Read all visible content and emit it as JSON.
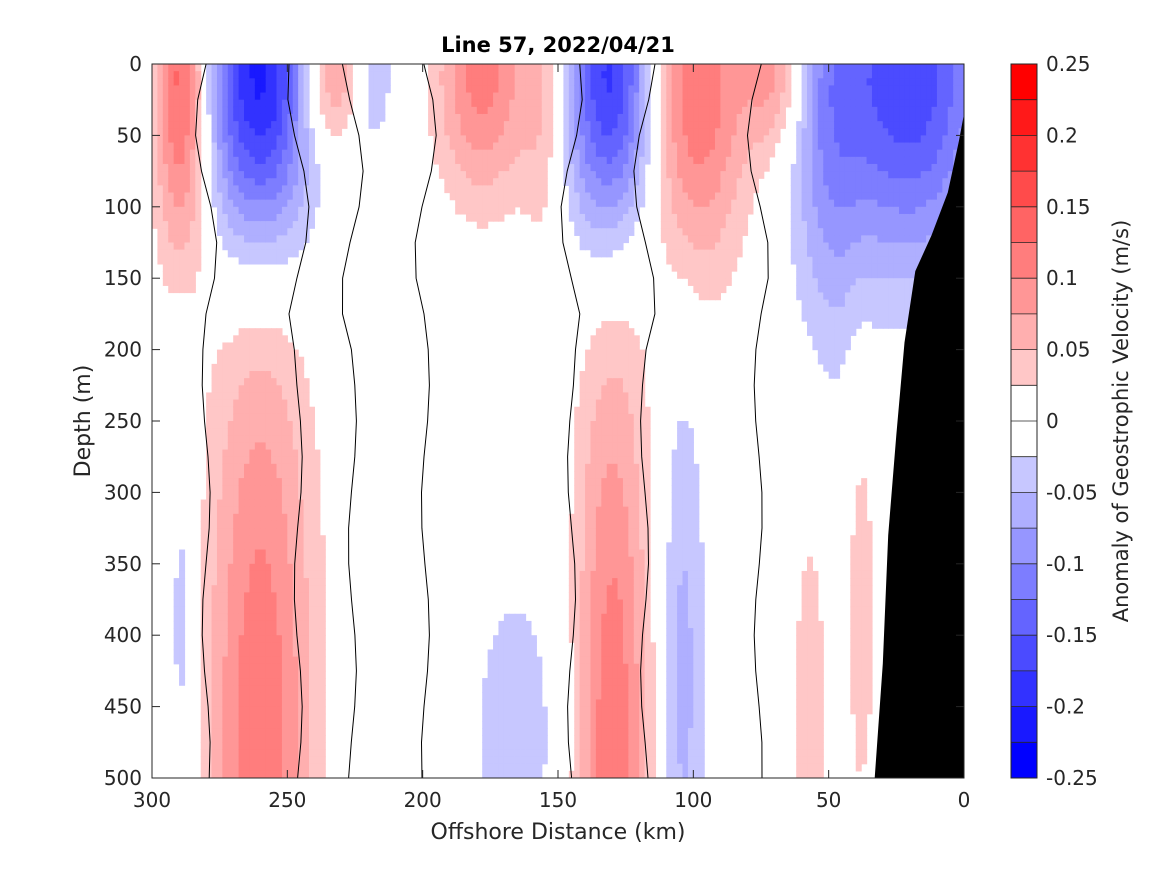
{
  "chart_data": {
    "type": "contourf",
    "title": "Line 57, 2022/04/21",
    "xlabel": "Offshore Distance (km)",
    "ylabel": "Depth (m)",
    "xlim": [
      300,
      0
    ],
    "ylim": [
      500,
      0
    ],
    "x_reversed": true,
    "y_reversed": true,
    "x_ticks": [
      300,
      250,
      200,
      150,
      100,
      50,
      0
    ],
    "y_ticks": [
      0,
      50,
      100,
      150,
      200,
      250,
      300,
      350,
      400,
      450,
      500
    ],
    "colorbar": {
      "label": "Anomaly of Geostrophic Velocity (m/s)",
      "range": [
        -0.25,
        0.25
      ],
      "step": 0.025,
      "ticks": [
        0.25,
        0.2,
        0.15,
        0.1,
        0.05,
        0,
        -0.05,
        -0.1,
        -0.15,
        -0.2,
        -0.25
      ]
    },
    "zero_contour_positions_km": [
      280,
      246,
      226,
      199,
      145,
      118,
      76
    ],
    "velocity_features": [
      {
        "name": "positive core near 290 km",
        "x_km": 289,
        "depth_m": 10,
        "peak": 0.15,
        "x_halfwidth_km": 7,
        "z_scale_m": 90
      },
      {
        "name": "negative core near 260 km",
        "x_km": 260,
        "depth_m": 10,
        "peak": -0.22,
        "x_halfwidth_km": 14,
        "z_scale_m": 85
      },
      {
        "name": "positive core near 235 km",
        "x_km": 235,
        "depth_m": 5,
        "peak": 0.1,
        "x_halfwidth_km": 8,
        "z_scale_m": 40
      },
      {
        "name": "negative core near 218 km",
        "x_km": 218,
        "depth_m": 5,
        "peak": -0.05,
        "x_halfwidth_km": 5,
        "z_scale_m": 40
      },
      {
        "name": "positive core near 178 km",
        "x_km": 178,
        "depth_m": 10,
        "peak": 0.11,
        "x_halfwidth_km": 12,
        "z_scale_m": 60
      },
      {
        "name": "positive core near 155 km",
        "x_km": 155,
        "depth_m": 20,
        "peak": 0.05,
        "x_halfwidth_km": 6,
        "z_scale_m": 80
      },
      {
        "name": "negative core near 130 km",
        "x_km": 130,
        "depth_m": 10,
        "peak": -0.2,
        "x_halfwidth_km": 12,
        "z_scale_m": 80
      },
      {
        "name": "positive core near 100 km",
        "x_km": 100,
        "depth_m": 15,
        "peak": 0.13,
        "x_halfwidth_km": 14,
        "z_scale_m": 90
      },
      {
        "name": "positive core near 70 km",
        "x_km": 70,
        "depth_m": 5,
        "peak": 0.08,
        "x_halfwidth_km": 8,
        "z_scale_m": 40
      },
      {
        "name": "negative core near 50 km",
        "x_km": 50,
        "depth_m": 40,
        "peak": -0.07,
        "x_halfwidth_km": 10,
        "z_scale_m": 120
      },
      {
        "name": "negative core near 20 km",
        "x_km": 20,
        "depth_m": 10,
        "peak": -0.17,
        "x_halfwidth_km": 20,
        "z_scale_m": 90
      },
      {
        "name": "deep positive near 260 km",
        "x_km": 260,
        "depth_m": 480,
        "peak": 0.12,
        "x_halfwidth_km": 14,
        "z_scale_m": 230
      },
      {
        "name": "deep positive near 130 km",
        "x_km": 130,
        "depth_m": 490,
        "peak": 0.12,
        "x_halfwidth_km": 10,
        "z_scale_m": 220
      },
      {
        "name": "deep negative near 104 km",
        "x_km": 104,
        "depth_m": 430,
        "peak": -0.06,
        "x_halfwidth_km": 6,
        "z_scale_m": 160
      },
      {
        "name": "deep negative near 165 km",
        "x_km": 165,
        "depth_m": 470,
        "peak": -0.04,
        "x_halfwidth_km": 14,
        "z_scale_m": 90
      },
      {
        "name": "deep negative near 289 km",
        "x_km": 289,
        "depth_m": 400,
        "peak": -0.04,
        "x_halfwidth_km": 4,
        "z_scale_m": 150
      },
      {
        "name": "deep positive near 57 km",
        "x_km": 57,
        "depth_m": 450,
        "peak": 0.04,
        "x_halfwidth_km": 5,
        "z_scale_m": 120
      },
      {
        "name": "deep positive near 38 km",
        "x_km": 38,
        "depth_m": 380,
        "peak": 0.04,
        "x_halfwidth_km": 4,
        "z_scale_m": 120
      }
    ],
    "bathymetry": {
      "fill": "#000000",
      "profile": [
        {
          "x_km": 33,
          "depth_m": 500
        },
        {
          "x_km": 30,
          "depth_m": 420
        },
        {
          "x_km": 28,
          "depth_m": 330
        },
        {
          "x_km": 25,
          "depth_m": 260
        },
        {
          "x_km": 22,
          "depth_m": 195
        },
        {
          "x_km": 18,
          "depth_m": 145
        },
        {
          "x_km": 12,
          "depth_m": 120
        },
        {
          "x_km": 6,
          "depth_m": 90
        },
        {
          "x_km": 2,
          "depth_m": 55
        },
        {
          "x_km": 0,
          "depth_m": 35
        }
      ]
    },
    "colors": {
      "positive_max": "#ff0000",
      "negative_max": "#0000ff",
      "zero": "#ffffff"
    }
  }
}
